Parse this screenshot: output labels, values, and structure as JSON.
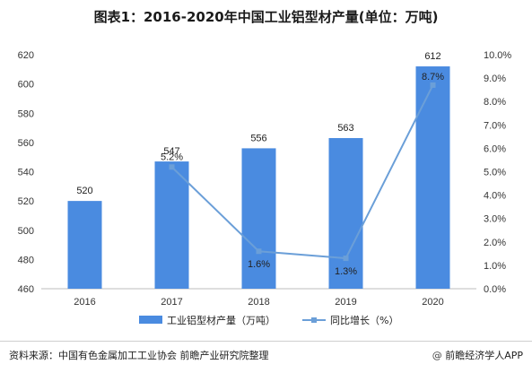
{
  "chart_data": {
    "type": "bar",
    "title": "图表1：2016-2020年中国工业铝型材产量(单位：万吨)",
    "categories": [
      "2016",
      "2017",
      "2018",
      "2019",
      "2020"
    ],
    "series": [
      {
        "name": "工业铝型材产量（万吨）",
        "type": "bar",
        "values": [
          520,
          547,
          556,
          563,
          612
        ],
        "color": "#4a8be0",
        "labels": [
          "520",
          "547",
          "556",
          "563",
          "612"
        ]
      },
      {
        "name": "同比增长（%）",
        "type": "line",
        "values": [
          null,
          5.2,
          1.6,
          1.3,
          8.7
        ],
        "color": "#6b9fd8",
        "labels": [
          "",
          "5.2%",
          "1.6%",
          "1.3%",
          "8.7%"
        ]
      }
    ],
    "ylim": [
      460,
      620
    ],
    "yticks": [
      "460",
      "480",
      "500",
      "520",
      "540",
      "560",
      "580",
      "600",
      "620"
    ],
    "y2lim": [
      0,
      10
    ],
    "y2ticks": [
      "0.0%",
      "1.0%",
      "2.0%",
      "3.0%",
      "4.0%",
      "5.0%",
      "6.0%",
      "7.0%",
      "8.0%",
      "9.0%",
      "10.0%"
    ],
    "grid": false,
    "legend": "bottom"
  },
  "footer": {
    "source": "资料来源：中国有色金属加工工业协会 前瞻产业研究院整理",
    "brand_icon": "@",
    "brand": "前瞻经济学人APP"
  }
}
